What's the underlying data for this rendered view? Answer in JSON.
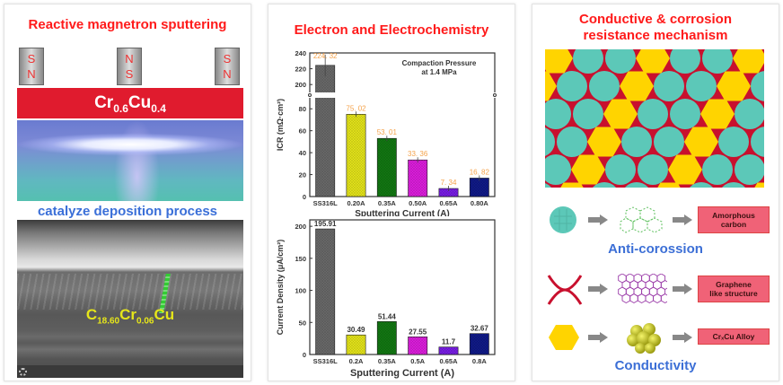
{
  "panels": {
    "left": {
      "title": "Reactive magnetron sputtering",
      "magnets": [
        {
          "top": "S",
          "bottom": "N"
        },
        {
          "top": "N",
          "bottom": "S"
        },
        {
          "top": "S",
          "bottom": "N"
        }
      ],
      "target": {
        "el1": "Cr",
        "sub1": "0.6",
        "el2": "Cu",
        "sub2": "0.4"
      },
      "process_label": "catalyze deposition  process",
      "sem_composition": {
        "el1": "C",
        "sub1": "18.60",
        "el2": "Cr",
        "sub2": "0.06",
        "el3": "Cu"
      }
    },
    "middle": {
      "title": "Electron and Electrochemistry"
    },
    "right": {
      "title_line1": "Conductive & corrosion",
      "title_line2": "resistance mechanism",
      "rows": [
        {
          "box": "Amorphous carbon",
          "box_line1": "Amorphous",
          "box_line2": "carbon"
        },
        {
          "box": "Graphene like structure",
          "box_line1": "Graphene",
          "box_line2": "like structure"
        },
        {
          "box": "CrxCu Alloy",
          "box_line1": "CrₓCu Alloy",
          "box_line2": ""
        }
      ],
      "anti_label": "Anti-corossion",
      "cond_label": "Conductivity",
      "colors": {
        "teal": "#5cc8b8",
        "yellow": "#ffd400",
        "red": "#c8102e",
        "pink": "#f06277",
        "blue": "#3c6fd6"
      }
    }
  },
  "chart_data": [
    {
      "type": "bar",
      "title": "",
      "annotation": "Compaction Pressure\nat 1.4 MPa",
      "annotation_line1": "Compaction Pressure",
      "annotation_line2": "at 1.4 MPa",
      "categories": [
        "SS316L",
        "0.20A",
        "0.35A",
        "0.50A",
        "0.65A",
        "0.80A"
      ],
      "values": [
        224.32,
        75.02,
        53.01,
        33.36,
        7.34,
        16.82
      ],
      "data_labels": [
        "224. 32",
        "75. 02",
        "53. 01",
        "33. 36",
        "7. 34",
        "16. 82"
      ],
      "colors": [
        "#6b6b6b",
        "#e8e81a",
        "#127a12",
        "#e01ee0",
        "#7a1ee8",
        "#101a8a"
      ],
      "xlabel": "Sputtering Current (A)",
      "ylabel": "ICR (mΩ·cm²)",
      "ylim": [
        0,
        240
      ],
      "axis_break": [
        90,
        190
      ],
      "yticks": [
        0,
        20,
        40,
        60,
        80,
        200,
        220,
        240
      ],
      "error_bars": true,
      "grid": false
    },
    {
      "type": "bar",
      "title": "",
      "categories": [
        "SS316L",
        "0.2A",
        "0.35A",
        "0.5A",
        "0.65A",
        "0.8A"
      ],
      "values": [
        195.91,
        30.49,
        51.44,
        27.55,
        11.7,
        32.67
      ],
      "data_labels": [
        "195.91",
        "30.49",
        "51.44",
        "27.55",
        "11.7",
        "32.67"
      ],
      "colors": [
        "#6b6b6b",
        "#e8e81a",
        "#127a12",
        "#e01ee0",
        "#7a1ee8",
        "#101a8a"
      ],
      "xlabel": "Sputtering Current (A)",
      "ylabel": "Current Density (μA/cm²)",
      "ylim": [
        0,
        210
      ],
      "yticks": [
        0,
        50,
        100,
        150,
        200
      ],
      "grid": false
    }
  ]
}
